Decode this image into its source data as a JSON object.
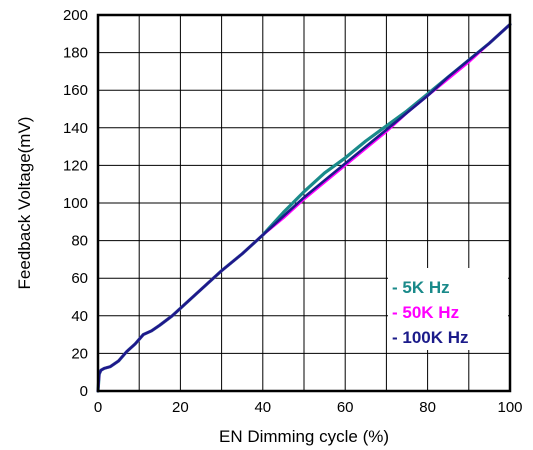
{
  "chart_data": {
    "type": "line",
    "title": "",
    "xlabel": "EN Dimming cycle (%)",
    "ylabel": "Feedback Voltage(mV)",
    "xlim": [
      0,
      100
    ],
    "ylim": [
      0,
      200
    ],
    "xticks": [
      "0",
      "20",
      "40",
      "60",
      "80",
      "100"
    ],
    "yticks": [
      "0",
      "20",
      "40",
      "60",
      "80",
      "100",
      "120",
      "140",
      "160",
      "180",
      "200"
    ],
    "grid": true,
    "legend_position": "bottom-right",
    "series": [
      {
        "name": "- 5K Hz",
        "color": "#1a8a8a",
        "x": [
          0,
          0.3,
          0.7,
          1.5,
          3,
          5,
          7,
          9,
          11,
          13,
          15,
          18,
          20,
          25,
          30,
          35,
          40,
          45,
          50,
          55,
          60,
          65,
          70,
          75,
          80,
          85,
          90,
          95,
          100
        ],
        "y": [
          0,
          9,
          11,
          12,
          13,
          16,
          21,
          25,
          30,
          32,
          35,
          40,
          44,
          54,
          64,
          73,
          83,
          95,
          106,
          116,
          124,
          133,
          141,
          149,
          158,
          167,
          176,
          185,
          195
        ]
      },
      {
        "name": "- 50K Hz",
        "color": "#ff00ff",
        "x": [
          0,
          0.3,
          0.7,
          1.5,
          3,
          5,
          7,
          9,
          11,
          13,
          15,
          18,
          20,
          25,
          30,
          35,
          40,
          45,
          50,
          55,
          60,
          65,
          70,
          75,
          80,
          85,
          90,
          95,
          100
        ],
        "y": [
          0,
          9,
          11,
          12,
          13,
          16,
          21,
          25,
          30,
          32,
          35,
          40,
          44,
          54,
          64,
          73,
          83,
          92,
          102,
          111,
          120,
          129,
          138,
          148,
          157,
          166,
          175,
          185,
          195
        ]
      },
      {
        "name": "- 100K Hz",
        "color": "#1b1b8a",
        "x": [
          0,
          0.3,
          0.7,
          1.5,
          3,
          5,
          7,
          9,
          11,
          13,
          15,
          18,
          20,
          25,
          30,
          35,
          40,
          45,
          50,
          55,
          60,
          65,
          70,
          75,
          80,
          85,
          90,
          95,
          100
        ],
        "y": [
          0,
          9,
          11,
          12,
          13,
          16,
          21,
          25,
          30,
          32,
          35,
          40,
          44,
          54,
          64,
          73,
          83,
          93,
          103,
          112,
          121,
          130,
          139,
          148,
          157,
          167,
          176,
          185,
          195
        ]
      }
    ]
  }
}
